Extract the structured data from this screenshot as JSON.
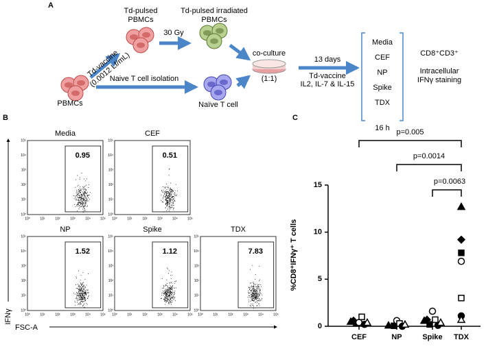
{
  "panel_a": {
    "label": "A",
    "vaccine_line1": "Td-vaccine",
    "vaccine_line2": "(0.0012 Lf/mL)",
    "pulsed_line1": "Td-pulsed",
    "pulsed_line2": "PBMCs",
    "dose": "30 Gy",
    "irradiated_line1": "Td-pulsed irradiated",
    "irradiated_line2": "PBMCs",
    "pbmcs": "PBMCs",
    "isolation": "Naive T cell isolation",
    "naive": "Naïve T cell",
    "coculture": "co-culture",
    "ratio": "(1:1)",
    "days": "13 days",
    "culture_line1": "Td-vaccine",
    "culture_line2": "IL2, IL-7 & IL-15",
    "stimuli": [
      "Media",
      "CEF",
      "NP",
      "Spike",
      "TDX"
    ],
    "duration": "16 h",
    "readout_line1": "CD8⁺CD3⁺",
    "readout_line2": "Intracellular",
    "readout_line3": "IFNγ staining"
  },
  "panel_b": {
    "label": "B",
    "y_axis": "IFNγ",
    "x_axis": "FSC-A",
    "tick_labels": [
      "10⁰",
      "10¹",
      "10²",
      "10³",
      "10⁴",
      "10⁵"
    ],
    "plots": [
      {
        "title": "Media",
        "gate": "0.95"
      },
      {
        "title": "CEF",
        "gate": "0.51"
      },
      {
        "title": "NP",
        "gate": "1.52"
      },
      {
        "title": "Spike",
        "gate": "1.12"
      },
      {
        "title": "TDX",
        "gate": "7.83"
      }
    ]
  },
  "chart_data": {
    "type": "scatter",
    "panel_label": "C",
    "y_label": "%CD8⁺IFNγ⁺ T cells",
    "categories": [
      "CEF",
      "NP",
      "Spike",
      "TDX"
    ],
    "ylim": [
      0,
      15
    ],
    "yticks": [
      0,
      5,
      10,
      15
    ],
    "color": "#000000",
    "series": [
      {
        "marker": "triangle",
        "filled": true,
        "values": [
          0.5,
          0.1,
          0.6,
          12.7
        ]
      },
      {
        "marker": "diamond",
        "filled": true,
        "values": [
          0.6,
          null,
          0.7,
          9.2
        ]
      },
      {
        "marker": "square",
        "filled": true,
        "values": [
          0.3,
          0.05,
          0.2,
          7.8
        ]
      },
      {
        "marker": "circle",
        "filled": false,
        "values": [
          0.4,
          0.6,
          1.6,
          6.9
        ]
      },
      {
        "marker": "square",
        "filled": false,
        "values": [
          1.0,
          0.3,
          0.7,
          3.0
        ]
      },
      {
        "marker": "circle",
        "filled": true,
        "values": [
          0.2,
          0.0,
          0.1,
          1.1
        ]
      },
      {
        "marker": "triangle",
        "filled": false,
        "values": [
          0.4,
          0.2,
          0.4,
          0.7
        ]
      }
    ],
    "brackets": [
      {
        "label": "p=0.005",
        "pair": [
          "CEF",
          "TDX"
        ]
      },
      {
        "label": "p=0.0014",
        "pair": [
          "NP",
          "TDX"
        ]
      },
      {
        "label": "p=0.0063",
        "pair": [
          "Spike",
          "TDX"
        ]
      }
    ]
  }
}
